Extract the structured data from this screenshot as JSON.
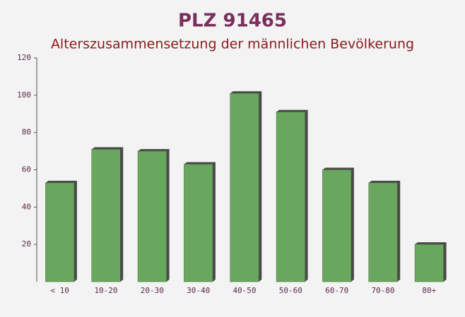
{
  "chart_data": {
    "type": "bar",
    "title": "PLZ 91465",
    "subtitle": "Alterszusammensetzung der männlichen Bevölkerung",
    "categories": [
      "< 10",
      "10-20",
      "20-30",
      "30-40",
      "40-50",
      "50-60",
      "60-70",
      "70-80",
      "80+"
    ],
    "values": [
      53,
      71,
      70,
      63,
      101,
      91,
      60,
      53,
      20
    ],
    "color": "#6aa75e",
    "ylim": [
      0,
      120
    ],
    "yticks": [
      20,
      40,
      60,
      80,
      100,
      120
    ],
    "grid": false
  }
}
